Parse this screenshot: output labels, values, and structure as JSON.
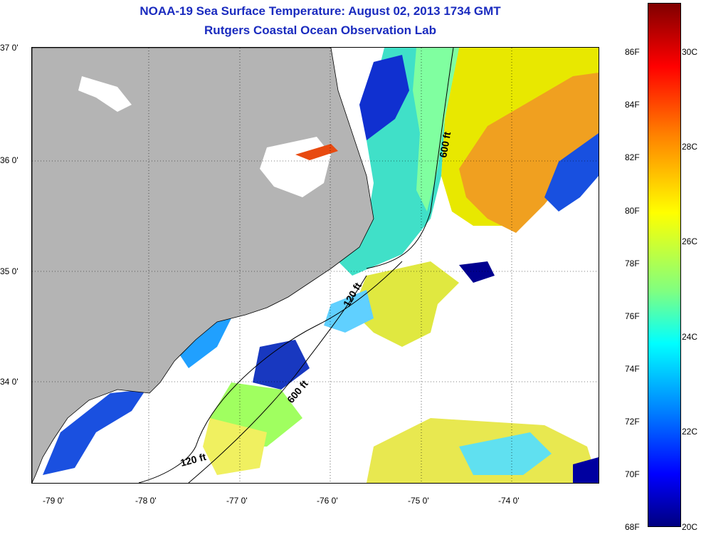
{
  "title_line1": "NOAA-19 Sea Surface Temperature:  August 02, 2013 1734 GMT",
  "title_line2": "Rutgers Coastal Ocean Observation Lab",
  "lat_labels": [
    "37 0'",
    "36 0'",
    "35 0'",
    "34 0'"
  ],
  "lon_labels": [
    "-79 0'",
    "-78 0'",
    "-77 0'",
    "-76 0'",
    "-75 0'",
    "-74 0'"
  ],
  "contour_labels": {
    "shelf_600_north": "600 ft",
    "shelf_120_mid": "120 ft",
    "shelf_600_south": "600 ft",
    "shelf_120_south": "120 ft"
  },
  "colorbar_f": [
    "86F",
    "84F",
    "82F",
    "80F",
    "78F",
    "76F",
    "74F",
    "72F",
    "70F",
    "68F"
  ],
  "colorbar_c": [
    "30C",
    "28C",
    "26C",
    "24C",
    "22C",
    "20C"
  ],
  "colors": {
    "land": "#b4b4b4",
    "title": "#1a2bbf",
    "cold": "#0000c8",
    "cool": "#00d8ff",
    "mid": "#80ff80",
    "warm": "#ffff00",
    "hot": "#ff9000"
  }
}
